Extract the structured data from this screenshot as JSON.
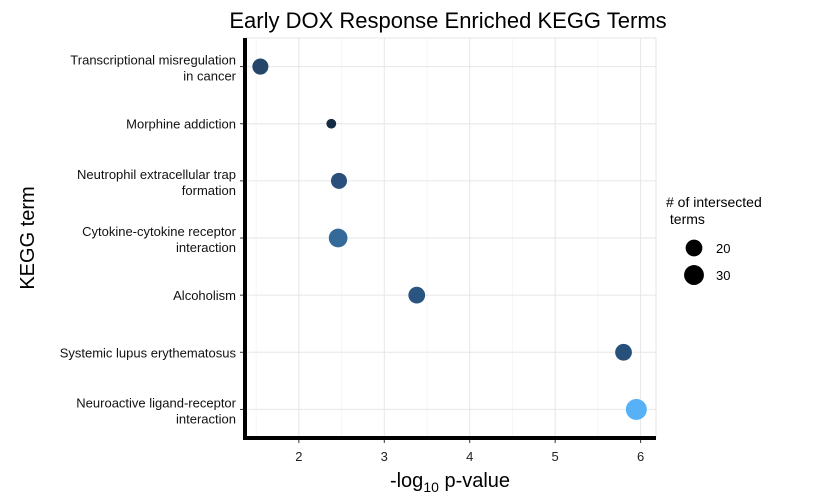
{
  "chart_data": {
    "type": "scatter",
    "title": "Early DOX Response Enriched KEGG Terms",
    "xlabel_main": "-log",
    "xlabel_sub": "10",
    "xlabel_rest": " p-value",
    "ylabel": "KEGG term",
    "xlim": [
      1.37,
      6.18
    ],
    "xticks": [
      "2",
      "3",
      "4",
      "5",
      "6"
    ],
    "grid": true,
    "legend_position": "right",
    "legend": {
      "title_line1": "# of intersected",
      "title_line2": " terms",
      "entries": [
        {
          "label": "20",
          "size": 20
        },
        {
          "label": "30",
          "size": 30
        }
      ]
    },
    "points": [
      {
        "term_line1": "Transcriptional misregulation",
        "term_line2": "in cancer",
        "x": 1.55,
        "count": 18,
        "color": "#24466a"
      },
      {
        "term_line1": "Morphine addiction",
        "term_line2": "",
        "x": 2.38,
        "count": 5,
        "color": "#132b43"
      },
      {
        "term_line1": "Neutrophil extracellular trap",
        "term_line2": "formation",
        "x": 2.47,
        "count": 18,
        "color": "#28507a"
      },
      {
        "term_line1": "Cytokine-cytokine receptor",
        "term_line2": "interaction",
        "x": 2.46,
        "count": 26,
        "color": "#336a9a"
      },
      {
        "term_line1": "Alcoholism",
        "term_line2": "",
        "x": 3.38,
        "count": 20,
        "color": "#2a5580"
      },
      {
        "term_line1": "Systemic lupus erythematosus",
        "term_line2": "",
        "x": 5.8,
        "count": 20,
        "color": "#27507a"
      },
      {
        "term_line1": "Neuroactive ligand-receptor",
        "term_line2": "interaction",
        "x": 5.95,
        "count": 34,
        "color": "#56b1f7"
      }
    ]
  }
}
